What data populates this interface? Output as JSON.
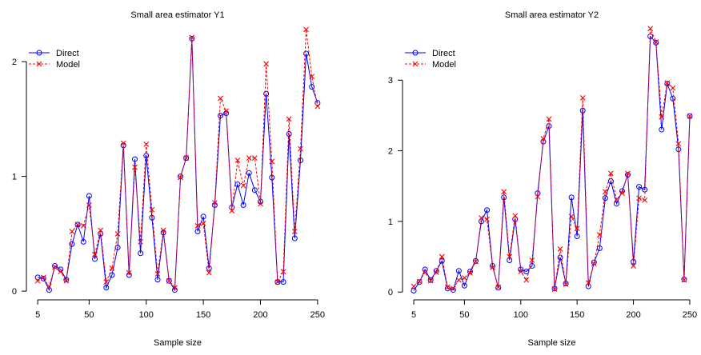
{
  "chart_data": [
    {
      "type": "line",
      "title": "Small area estimator Y1",
      "xlabel": "Sample size",
      "ylabel": "",
      "xlim": [
        0,
        255
      ],
      "ylim": [
        -0.02,
        2.3
      ],
      "xticks": [
        5,
        50,
        100,
        150,
        200,
        250
      ],
      "yticks": [
        0,
        1,
        2
      ],
      "legend_position": "top-left",
      "x": [
        5,
        10,
        15,
        20,
        25,
        30,
        35,
        40,
        45,
        50,
        55,
        60,
        65,
        70,
        75,
        80,
        85,
        90,
        95,
        100,
        105,
        110,
        115,
        120,
        125,
        130,
        135,
        140,
        145,
        150,
        155,
        160,
        165,
        170,
        175,
        180,
        185,
        190,
        195,
        200,
        205,
        210,
        215,
        220,
        225,
        230,
        235,
        240,
        245,
        250
      ],
      "series": [
        {
          "name": "Direct",
          "color": "#0000ff",
          "style": "solid",
          "marker": "circle",
          "values": [
            0.12,
            0.11,
            0.01,
            0.22,
            0.19,
            0.1,
            0.41,
            0.58,
            0.43,
            0.83,
            0.28,
            0.5,
            0.03,
            0.14,
            0.38,
            1.27,
            0.14,
            1.15,
            0.33,
            1.18,
            0.64,
            0.1,
            0.51,
            0.09,
            0.01,
            1.0,
            1.16,
            2.2,
            0.52,
            0.65,
            0.2,
            0.75,
            1.53,
            1.55,
            0.73,
            0.93,
            0.75,
            1.03,
            0.88,
            0.78,
            1.72,
            0.99,
            0.08,
            0.08,
            1.37,
            0.46,
            1.14,
            2.07,
            1.78,
            1.64
          ]
        },
        {
          "name": "Model",
          "color": "#ff0000",
          "style": "dashed",
          "marker": "x",
          "values": [
            0.09,
            0.12,
            0.04,
            0.21,
            0.17,
            0.09,
            0.52,
            0.58,
            0.57,
            0.75,
            0.32,
            0.53,
            0.08,
            0.2,
            0.5,
            1.29,
            0.16,
            1.08,
            0.43,
            1.28,
            0.71,
            0.15,
            0.53,
            0.09,
            0.03,
            0.99,
            1.16,
            2.21,
            0.57,
            0.59,
            0.16,
            0.77,
            1.68,
            1.57,
            0.7,
            1.14,
            0.92,
            1.16,
            1.16,
            0.76,
            1.98,
            1.13,
            0.08,
            0.17,
            1.5,
            0.52,
            1.24,
            2.28,
            1.87,
            1.61
          ]
        }
      ]
    },
    {
      "type": "line",
      "title": "Small area estimator Y2",
      "xlabel": "Sample size",
      "ylabel": "",
      "xlim": [
        0,
        255
      ],
      "ylim": [
        -0.02,
        3.75
      ],
      "xticks": [
        5,
        50,
        100,
        150,
        200,
        250
      ],
      "yticks": [
        0,
        1,
        2,
        3
      ],
      "legend_position": "top-left",
      "x": [
        5,
        10,
        15,
        20,
        25,
        30,
        35,
        40,
        45,
        50,
        55,
        60,
        65,
        70,
        75,
        80,
        85,
        90,
        95,
        100,
        105,
        110,
        115,
        120,
        125,
        130,
        135,
        140,
        145,
        150,
        155,
        160,
        165,
        170,
        175,
        180,
        185,
        190,
        195,
        200,
        205,
        210,
        215,
        220,
        225,
        230,
        235,
        240,
        245,
        250
      ],
      "series": [
        {
          "name": "Direct",
          "color": "#0000ff",
          "style": "solid",
          "marker": "circle",
          "values": [
            0.02,
            0.14,
            0.32,
            0.17,
            0.3,
            0.44,
            0.05,
            0.03,
            0.3,
            0.09,
            0.29,
            0.44,
            1.0,
            1.16,
            0.37,
            0.06,
            1.34,
            0.45,
            1.03,
            0.32,
            0.29,
            0.37,
            1.4,
            2.13,
            2.35,
            0.05,
            0.49,
            0.12,
            1.34,
            0.79,
            2.57,
            0.08,
            0.42,
            0.62,
            1.33,
            1.57,
            1.25,
            1.43,
            1.66,
            0.43,
            1.49,
            1.45,
            3.62,
            3.53,
            2.3,
            2.95,
            2.74,
            2.02,
            0.18,
            2.49
          ]
        },
        {
          "name": "Model",
          "color": "#ff0000",
          "style": "dashed",
          "marker": "x",
          "values": [
            0.08,
            0.15,
            0.28,
            0.16,
            0.28,
            0.5,
            0.07,
            0.05,
            0.17,
            0.2,
            0.27,
            0.43,
            1.05,
            1.03,
            0.35,
            0.07,
            1.42,
            0.5,
            1.08,
            0.29,
            0.17,
            0.45,
            1.35,
            2.17,
            2.45,
            0.04,
            0.61,
            0.11,
            1.07,
            0.9,
            2.75,
            0.13,
            0.4,
            0.81,
            1.42,
            1.68,
            1.31,
            1.4,
            1.68,
            0.37,
            1.33,
            1.3,
            3.73,
            3.54,
            2.48,
            2.96,
            2.89,
            2.1,
            0.17,
            2.49
          ]
        }
      ]
    }
  ]
}
